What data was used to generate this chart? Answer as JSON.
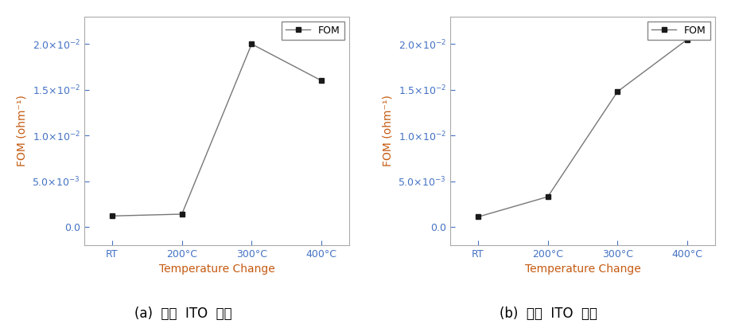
{
  "left_chart": {
    "x_labels": [
      "RT",
      "200°C",
      "300°C",
      "400°C"
    ],
    "x_values": [
      0,
      1,
      2,
      3
    ],
    "y_values": [
      0.0012,
      0.0014,
      0.02,
      0.016
    ],
    "ylabel": "FOM (ohm⁻¹)",
    "xlabel": "Temperature Change",
    "ylim": [
      -0.002,
      0.023
    ],
    "yticks": [
      0.0,
      0.005,
      0.01,
      0.015,
      0.02
    ],
    "legend_label": "FOM",
    "subtitle": "(a)  상용  ITO  타겟"
  },
  "right_chart": {
    "x_labels": [
      "RT",
      "200°C",
      "300°C",
      "400°C"
    ],
    "x_values": [
      0,
      1,
      2,
      3
    ],
    "y_values": [
      0.0011,
      0.0033,
      0.0148,
      0.0205
    ],
    "ylabel": "FOM (ohm⁻¹)",
    "xlabel": "Temperature Change",
    "ylim": [
      -0.002,
      0.023
    ],
    "yticks": [
      0.0,
      0.005,
      0.01,
      0.015,
      0.02
    ],
    "legend_label": "FOM",
    "subtitle": "(b)  재생  ITO  타겟"
  },
  "line_color": "#777777",
  "marker_color": "#1a1a1a",
  "marker": "s",
  "marker_size": 5,
  "tick_color": "#4472c4",
  "label_color": "#c55a11",
  "bg_color": "#ffffff",
  "subtitle_fontsize": 12,
  "axis_label_fontsize": 10,
  "tick_fontsize": 9,
  "legend_fontsize": 9
}
